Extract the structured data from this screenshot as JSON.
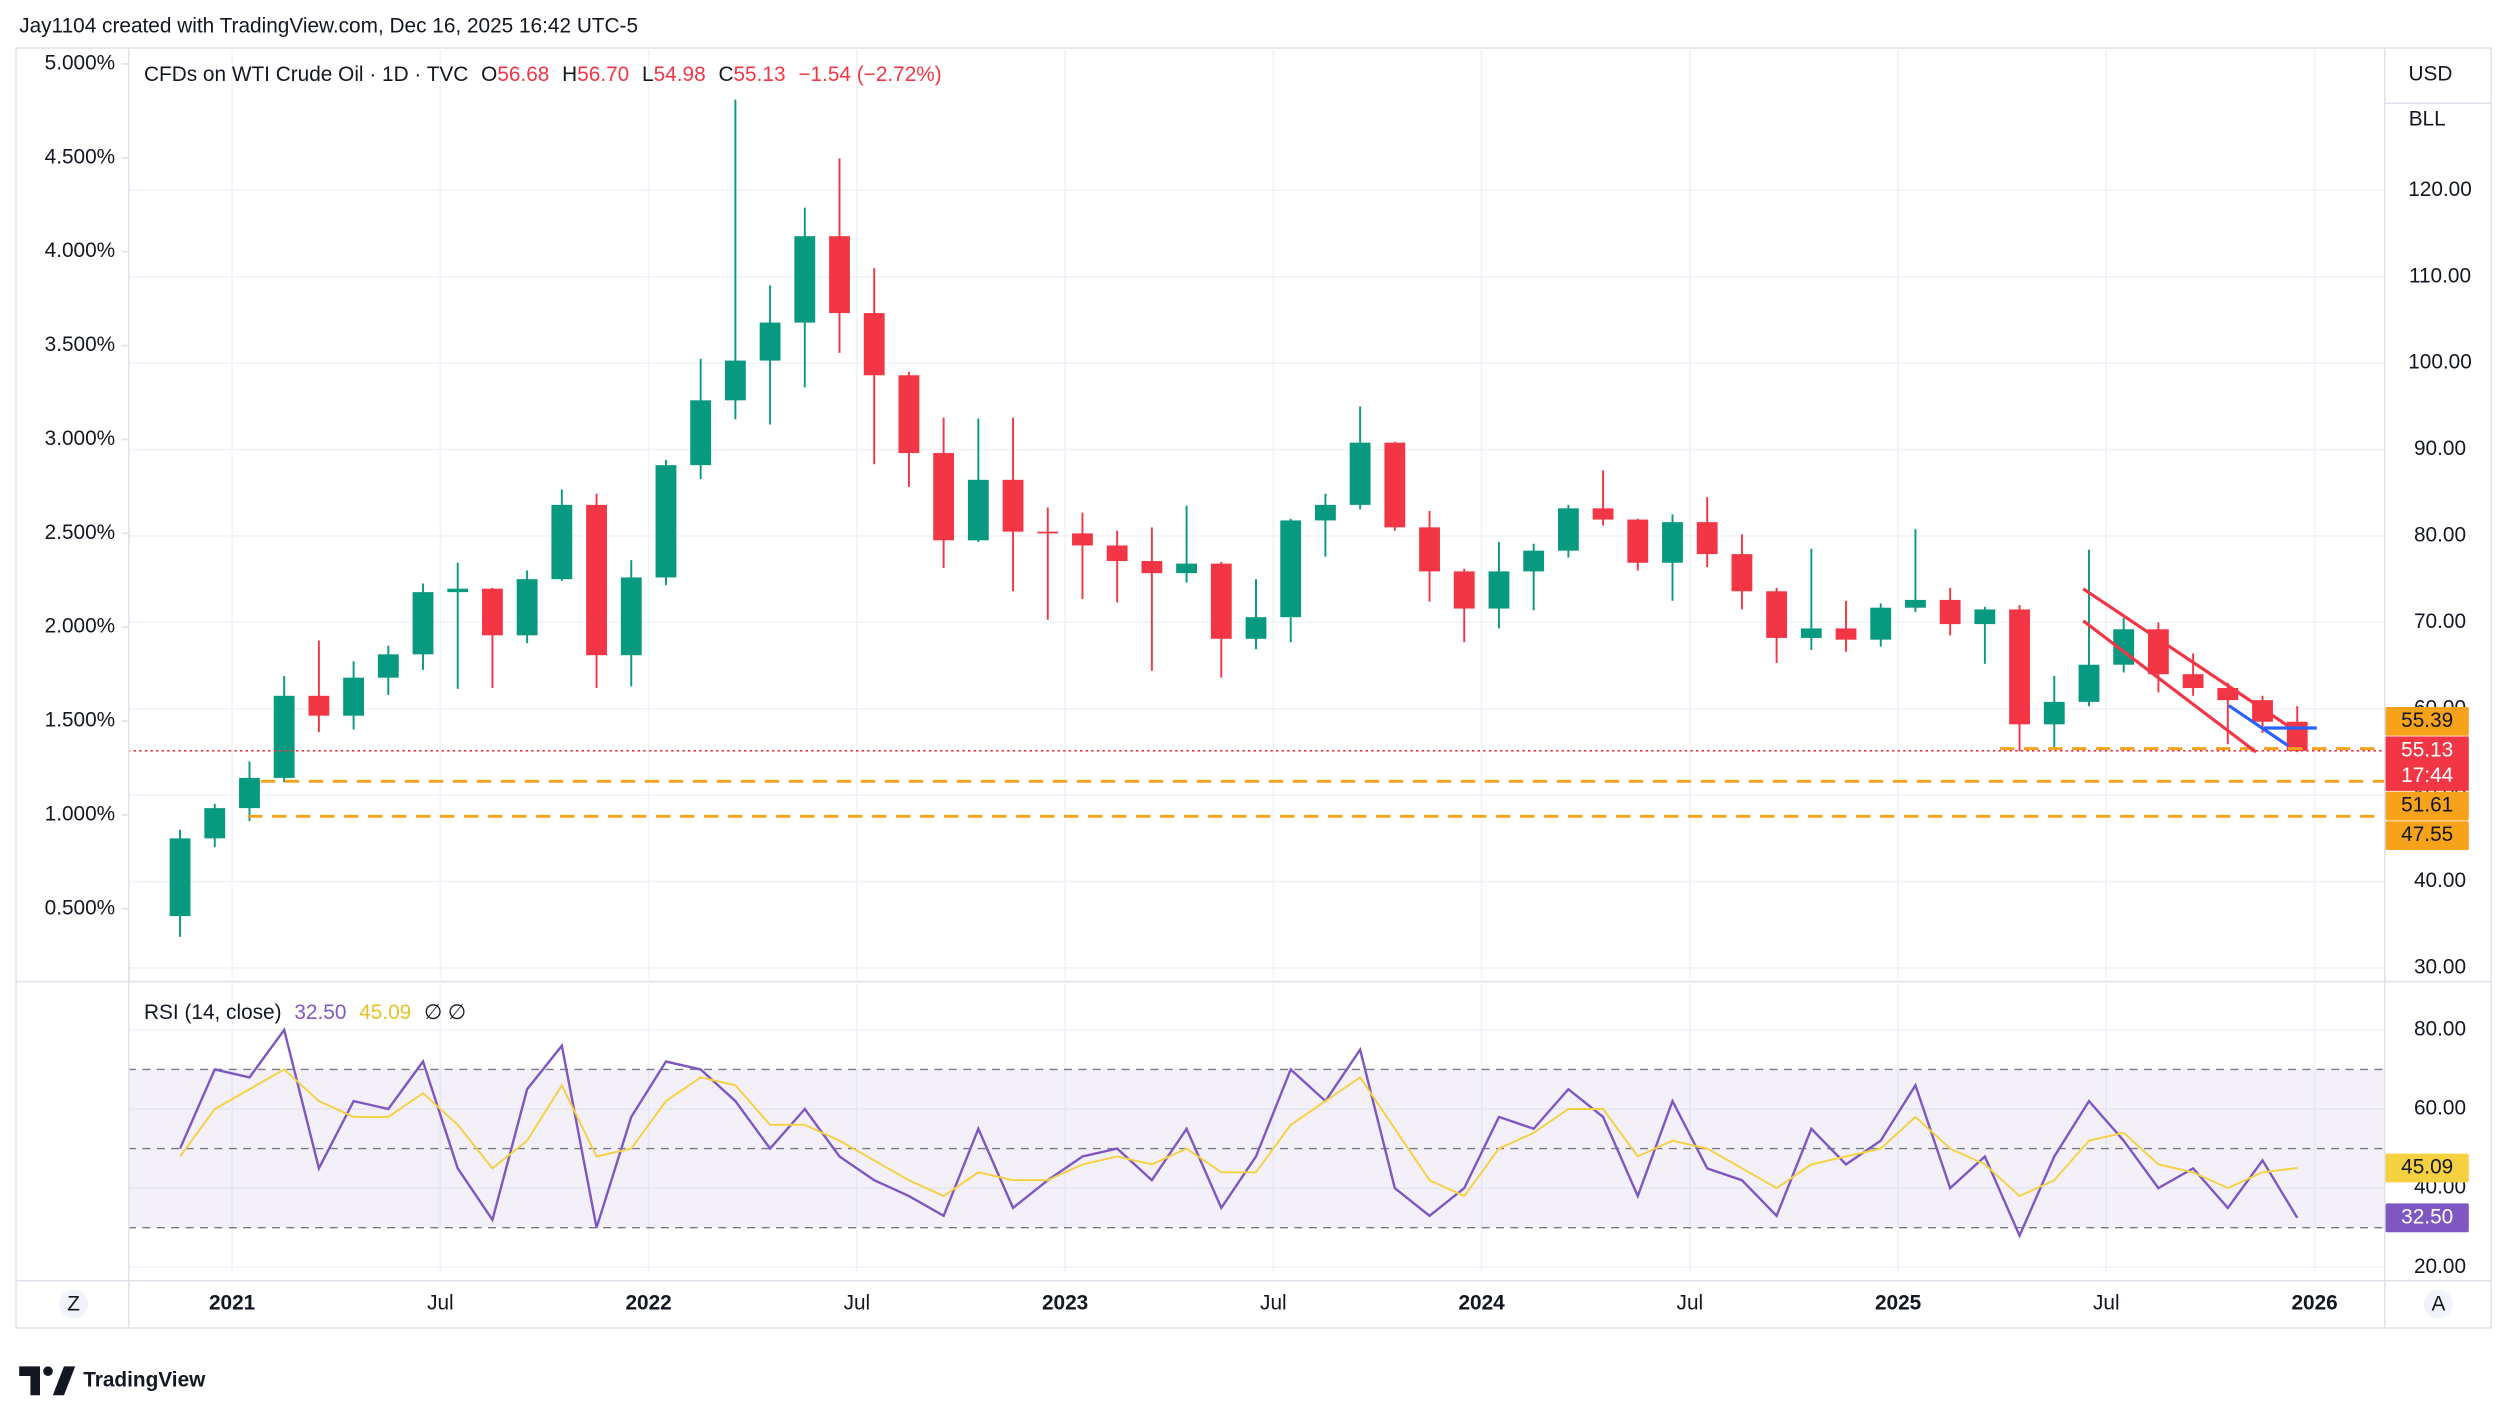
{
  "attribution": "Jay1104 created with TradingView.com, Dec 16, 2025 16:42 UTC-5",
  "logo": "TradingView",
  "currency": "USD",
  "unit": "BLL",
  "scale_left": "Z",
  "scale_auto": "A",
  "chart_data": [
    {
      "type": "candlestick",
      "title": "CFDs on WTI Crude Oil · 1D · TVC",
      "legend_keys": [
        "O",
        "H",
        "L",
        "C"
      ],
      "legend_values": [
        "56.68",
        "56.70",
        "54.98",
        "55.13"
      ],
      "change": "−1.54 (−2.72%)",
      "up_color": "#089981",
      "down_color": "#f23645",
      "x": [
        "2020-11",
        "2020-12",
        "2021-01",
        "2021-02",
        "2021-03",
        "2021-04",
        "2021-05",
        "2021-06",
        "2021-07",
        "2021-08",
        "2021-09",
        "2021-10",
        "2021-11",
        "2021-12",
        "2022-01",
        "2022-02",
        "2022-03",
        "2022-04",
        "2022-05",
        "2022-06",
        "2022-07",
        "2022-08",
        "2022-09",
        "2022-10",
        "2022-11",
        "2022-12",
        "2023-01",
        "2023-02",
        "2023-03",
        "2023-04",
        "2023-05",
        "2023-06",
        "2023-07",
        "2023-08",
        "2023-09",
        "2023-10",
        "2023-11",
        "2023-12",
        "2024-01",
        "2024-02",
        "2024-03",
        "2024-04",
        "2024-05",
        "2024-06",
        "2024-07",
        "2024-08",
        "2024-09",
        "2024-10",
        "2024-11",
        "2024-12",
        "2025-01",
        "2025-02",
        "2025-03",
        "2025-04",
        "2025-05",
        "2025-06",
        "2025-07",
        "2025-08",
        "2025-09",
        "2025-10",
        "2025-11",
        "2025-12"
      ],
      "open": [
        36,
        45,
        48.5,
        52,
        61.5,
        59.2,
        63.6,
        66.3,
        73.5,
        73.9,
        68.5,
        75,
        83.6,
        66.2,
        75.2,
        88.2,
        95.7,
        100.3,
        104.7,
        114.7,
        105.8,
        98.6,
        89.6,
        79.5,
        86.5,
        80.5,
        80.3,
        78.9,
        77.1,
        75.7,
        76.8,
        68.1,
        70.6,
        81.8,
        83.6,
        90.8,
        81,
        75.9,
        71.6,
        75.9,
        78.3,
        83.2,
        81.9,
        76.9,
        81.6,
        77.9,
        73.6,
        68.2,
        69.3,
        68,
        71.7,
        72.6,
        69.8,
        71.5,
        58.2,
        60.8,
        65.1,
        69.2,
        64,
        62.4,
        61,
        58.5
      ],
      "high": [
        46,
        49,
        53.9,
        63.8,
        67.9,
        65.5,
        67.3,
        74.5,
        76.9,
        74,
        76,
        85.4,
        84.9,
        77.2,
        88.8,
        100.5,
        130.5,
        109,
        118,
        123.7,
        111,
        99,
        93.7,
        93.6,
        93.7,
        83.3,
        82.7,
        80.6,
        81,
        83.5,
        77,
        75,
        82,
        84.9,
        95,
        90.9,
        82.9,
        76.2,
        79.3,
        79.1,
        83.6,
        87.6,
        82,
        82.5,
        84.5,
        80.2,
        74,
        78.5,
        72.5,
        72.2,
        80.8,
        74,
        71.8,
        72,
        63.8,
        78.4,
        70.5,
        70,
        66.4,
        63,
        61.5,
        60.3
      ],
      "low": [
        33.6,
        44,
        47,
        51.5,
        57.3,
        57.6,
        61.6,
        64.5,
        62.3,
        62.4,
        67.6,
        74.8,
        62.4,
        62.6,
        74.3,
        86.6,
        93.5,
        92.9,
        97.2,
        101.2,
        88.3,
        85.7,
        76.3,
        79.3,
        73.6,
        70.3,
        72.7,
        72.3,
        64.4,
        74.6,
        63.6,
        66.9,
        67.7,
        77.6,
        83.1,
        80.6,
        72.4,
        67.7,
        69.3,
        71.4,
        77.5,
        81.2,
        76,
        72.5,
        76.4,
        71.5,
        65.3,
        66.8,
        66.6,
        67.2,
        71.2,
        68.5,
        65.2,
        55.1,
        55.3,
        60.3,
        64.2,
        61.9,
        61.5,
        55.9,
        57.2,
        54.98
      ],
      "close": [
        45,
        48.5,
        52,
        61.5,
        59.2,
        63.6,
        66.3,
        73.5,
        73.9,
        68.5,
        75,
        83.6,
        66.2,
        75.2,
        88.2,
        95.7,
        100.3,
        104.7,
        114.7,
        105.8,
        98.6,
        89.6,
        79.5,
        86.5,
        80.5,
        80.3,
        78.9,
        77.1,
        75.7,
        76.8,
        68.1,
        70.6,
        81.8,
        83.6,
        90.8,
        81,
        75.9,
        71.6,
        75.9,
        78.3,
        83.2,
        81.9,
        76.9,
        81.6,
        77.9,
        73.6,
        68.2,
        69.3,
        68,
        71.7,
        72.6,
        69.8,
        71.5,
        58.2,
        60.8,
        65.1,
        69.2,
        64,
        62.4,
        61,
        58.5,
        55.13
      ],
      "xlim": [
        "2020-10",
        "2026-03"
      ],
      "xticks": [
        {
          "value": "2021-01",
          "label": "2021"
        },
        {
          "value": "2021-07",
          "label": "Jul"
        },
        {
          "value": "2022-01",
          "label": "2022"
        },
        {
          "value": "2022-07",
          "label": "Jul"
        },
        {
          "value": "2023-01",
          "label": "2023"
        },
        {
          "value": "2023-07",
          "label": "Jul"
        },
        {
          "value": "2024-01",
          "label": "2024"
        },
        {
          "value": "2024-07",
          "label": "Jul"
        },
        {
          "value": "2025-01",
          "label": "2025"
        },
        {
          "value": "2025-07",
          "label": "Jul"
        },
        {
          "value": "2026-01",
          "label": "2026"
        }
      ],
      "ylim": [
        28.7,
        136.48
      ],
      "yticks": [
        {
          "value": 30,
          "label": "30.00"
        },
        {
          "value": 40,
          "label": "40.00"
        },
        {
          "value": 50,
          "label": "50.00"
        },
        {
          "value": 60,
          "label": "60.00"
        },
        {
          "value": 70,
          "label": "70.00"
        },
        {
          "value": 80,
          "label": "80.00"
        },
        {
          "value": 90,
          "label": "90.00"
        },
        {
          "value": 100,
          "label": "100.00"
        },
        {
          "value": 110,
          "label": "110.00"
        },
        {
          "value": 120,
          "label": "120.00"
        }
      ],
      "y2lim": [
        0.125,
        5.085
      ],
      "y2ticks": [
        {
          "value": 0.5,
          "label": "0.500%"
        },
        {
          "value": 1,
          "label": "1.000%"
        },
        {
          "value": 1.5,
          "label": "1.500%"
        },
        {
          "value": 2,
          "label": "2.000%"
        },
        {
          "value": 2.5,
          "label": "2.500%"
        },
        {
          "value": 3,
          "label": "3.000%"
        },
        {
          "value": 3.5,
          "label": "3.500%"
        },
        {
          "value": 4,
          "label": "4.000%"
        },
        {
          "value": 4.5,
          "label": "4.500%"
        },
        {
          "value": 5,
          "label": "5.000%"
        }
      ],
      "grid": true,
      "last_price": 55.13,
      "countdown": "17:44",
      "levels": [
        55.39,
        51.61,
        47.55
      ],
      "level_color": "#f7a21b"
    },
    {
      "type": "line",
      "title": "RSI (14, close)",
      "value_label": "32.50",
      "ma_value_label": "45.09",
      "flags": "∅ ∅",
      "x": [
        "2020-11",
        "2020-12",
        "2021-01",
        "2021-02",
        "2021-03",
        "2021-04",
        "2021-05",
        "2021-06",
        "2021-07",
        "2021-08",
        "2021-09",
        "2021-10",
        "2021-11",
        "2021-12",
        "2022-01",
        "2022-02",
        "2022-03",
        "2022-04",
        "2022-05",
        "2022-06",
        "2022-07",
        "2022-08",
        "2022-09",
        "2022-10",
        "2022-11",
        "2022-12",
        "2023-01",
        "2023-02",
        "2023-03",
        "2023-04",
        "2023-05",
        "2023-06",
        "2023-07",
        "2023-08",
        "2023-09",
        "2023-10",
        "2023-11",
        "2023-12",
        "2024-01",
        "2024-02",
        "2024-03",
        "2024-04",
        "2024-05",
        "2024-06",
        "2024-07",
        "2024-08",
        "2024-09",
        "2024-10",
        "2024-11",
        "2024-12",
        "2025-01",
        "2025-02",
        "2025-03",
        "2025-04",
        "2025-05",
        "2025-06",
        "2025-07",
        "2025-08",
        "2025-09",
        "2025-10",
        "2025-11",
        "2025-12"
      ],
      "series": [
        {
          "color": "#7e57c2",
          "values": [
            50,
            70,
            68,
            80,
            45,
            62,
            60,
            72,
            45,
            32,
            65,
            76,
            30,
            58,
            72,
            70,
            62,
            50,
            60,
            48,
            42,
            38,
            33,
            55,
            35,
            42,
            48,
            50,
            42,
            55,
            35,
            48,
            70,
            62,
            75,
            40,
            33,
            40,
            58,
            55,
            65,
            58,
            38,
            62,
            45,
            42,
            33,
            55,
            46,
            52,
            66,
            40,
            48,
            28,
            48,
            62,
            52,
            40,
            45,
            35,
            47,
            32.5
          ]
        },
        {
          "color": "#f5d142",
          "values": [
            48,
            60,
            65,
            70,
            62,
            58,
            58,
            64,
            56,
            45,
            52,
            66,
            48,
            50,
            62,
            68,
            66,
            56,
            56,
            52,
            47,
            42,
            38,
            44,
            42,
            42,
            46,
            48,
            46,
            50,
            44,
            44,
            56,
            62,
            68,
            55,
            42,
            38,
            50,
            54,
            60,
            60,
            48,
            52,
            50,
            45,
            40,
            46,
            48,
            50,
            58,
            50,
            46,
            38,
            42,
            52,
            54,
            46,
            44,
            40,
            44,
            45.09
          ]
        }
      ],
      "xlim": [
        "2020-10",
        "2026-03"
      ],
      "ylim": [
        18.8,
        91.6
      ],
      "yticks": [
        {
          "value": 20,
          "label": "20.00"
        },
        {
          "value": 40,
          "label": "40.00"
        },
        {
          "value": 60,
          "label": "60.00"
        },
        {
          "value": 80,
          "label": "80.00"
        }
      ],
      "levels": [
        70,
        50,
        30
      ],
      "band": [
        30,
        70
      ],
      "band_color": "#7e57c2"
    }
  ]
}
